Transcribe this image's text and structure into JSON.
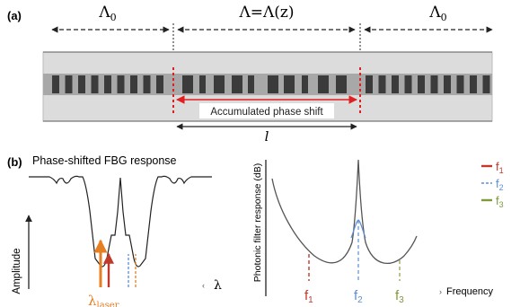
{
  "panel_a": {
    "label": "(a)",
    "left_period": "Λ",
    "left_period_sub": "0",
    "center_period": "Λ=Λ(z)",
    "right_period": "Λ",
    "right_period_sub": "0",
    "phase_shift_label": "Accumulated phase shift",
    "length_label": "l",
    "colors": {
      "grating_dark": "#3b3b3b",
      "grating_light": "#9a9a9a",
      "fiber": "#dcdcdc",
      "marker": "#e02020"
    }
  },
  "panel_b": {
    "label": "(b)",
    "fbg_title": "Phase-shifted FBG response",
    "amplitude_axis": "Amplitude",
    "wavelength_axis": "λ",
    "laser_label": "λ",
    "laser_label_sub": "laser",
    "photonic_axis": "Photonic filter response (dB)",
    "frequency_axis": "Frequency",
    "f1": {
      "label": "f",
      "sub": "1",
      "color": "#c0392b"
    },
    "f2": {
      "label": "f",
      "sub": "2",
      "color": "#5b8fd6"
    },
    "f3": {
      "label": "f",
      "sub": "3",
      "color": "#7f9a3a"
    },
    "legend": [
      {
        "label": "f",
        "sub": "1",
        "color": "#c0392b"
      },
      {
        "label": "f",
        "sub": "2",
        "color": "#5b8fd6"
      },
      {
        "label": "f",
        "sub": "3",
        "color": "#7f9a3a"
      }
    ],
    "colors": {
      "laser_arrow": "#e67e22",
      "curve": "#555555",
      "axis": "#222222"
    }
  }
}
